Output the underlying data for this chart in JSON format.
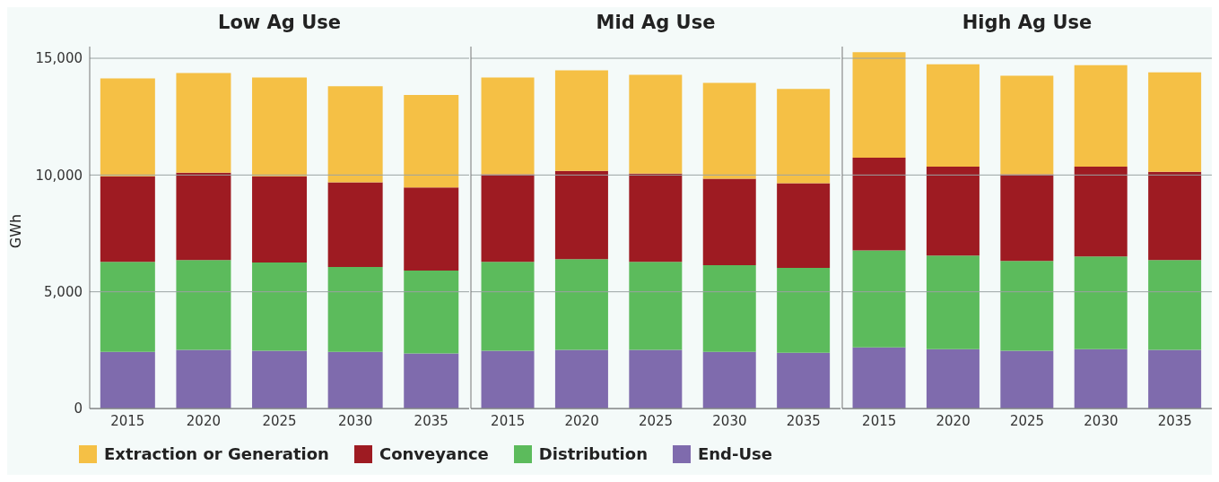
{
  "chart_data": [
    {
      "type": "bar",
      "title": "Low Ag Use",
      "ylabel": "GWh",
      "categories": [
        "2015",
        "2020",
        "2025",
        "2030",
        "2035"
      ],
      "stacked": true,
      "ylim": [
        0,
        15500
      ],
      "yticks": [
        0,
        {
          "value": 5000,
          "label": "5,000"
        },
        {
          "value": 10000,
          "label": "10,000"
        },
        {
          "value": 15000,
          "label": "15,000"
        }
      ],
      "grid": "y",
      "legend": "bottom",
      "series": [
        {
          "name": "End-Use",
          "color": "#7f6bad",
          "values": [
            2430,
            2510,
            2470,
            2430,
            2360
          ]
        },
        {
          "name": "Distribution",
          "color": "#5cbb5c",
          "values": [
            3850,
            3850,
            3780,
            3630,
            3550
          ]
        },
        {
          "name": "Conveyance",
          "color": "#9e1b22",
          "values": [
            3670,
            3740,
            3700,
            3630,
            3560
          ]
        },
        {
          "name": "Extraction or Generation",
          "color": "#f5c045",
          "values": [
            4190,
            4270,
            4230,
            4110,
            3960
          ]
        }
      ]
    },
    {
      "type": "bar",
      "title": "Mid Ag Use",
      "categories": [
        "2015",
        "2020",
        "2025",
        "2030",
        "2035"
      ],
      "stacked": true,
      "ylim": [
        0,
        15500
      ],
      "yticks": [
        0,
        5000,
        10000,
        15000
      ],
      "grid": "y",
      "tick_labels": "x",
      "series": [
        {
          "color": "#7f6bad",
          "values": [
            2470,
            2510,
            2510,
            2430,
            2390
          ]
        },
        {
          "color": "#5cbb5c",
          "values": [
            3810,
            3890,
            3770,
            3710,
            3630
          ]
        },
        {
          "color": "#9e1b22",
          "values": [
            3750,
            3780,
            3780,
            3700,
            3630
          ]
        },
        {
          "color": "#f5c045",
          "values": [
            4150,
            4300,
            4230,
            4110,
            4040
          ]
        }
      ]
    },
    {
      "type": "bar",
      "title": "High Ag Use",
      "categories": [
        "2015",
        "2020",
        "2025",
        "2030",
        "2035"
      ],
      "stacked": true,
      "ylim": [
        0,
        15500
      ],
      "yticks": [
        0,
        5000,
        10000,
        15000
      ],
      "grid": "y",
      "tick_labels": "x",
      "series": [
        {
          "color": "#7f6bad",
          "values": [
            2620,
            2540,
            2470,
            2540,
            2510
          ]
        },
        {
          "color": "#5cbb5c",
          "values": [
            4150,
            4010,
            3850,
            3970,
            3850
          ]
        },
        {
          "color": "#9e1b22",
          "values": [
            3970,
            3810,
            3710,
            3850,
            3780
          ]
        },
        {
          "color": "#f5c045",
          "values": [
            4520,
            4380,
            4220,
            4340,
            4260
          ]
        }
      ]
    }
  ]
}
